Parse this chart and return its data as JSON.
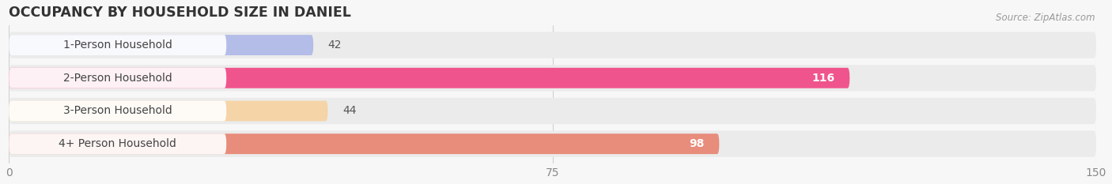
{
  "title": "OCCUPANCY BY HOUSEHOLD SIZE IN DANIEL",
  "source": "Source: ZipAtlas.com",
  "categories": [
    "1-Person Household",
    "2-Person Household",
    "3-Person Household",
    "4+ Person Household"
  ],
  "values": [
    42,
    116,
    44,
    98
  ],
  "bar_colors": [
    "#b4bce8",
    "#f0548c",
    "#f5d4a8",
    "#e88c7c"
  ],
  "label_bg_colors": [
    "#e8eaf8",
    "#ffffff",
    "#fdf5e8",
    "#ffffff"
  ],
  "xlim": [
    0,
    150
  ],
  "xticks": [
    0,
    75,
    150
  ],
  "background_color": "#f7f7f7",
  "row_bg_color": "#ebebeb",
  "title_fontsize": 12.5,
  "tick_fontsize": 10,
  "label_fontsize": 10,
  "value_fontsize": 10
}
